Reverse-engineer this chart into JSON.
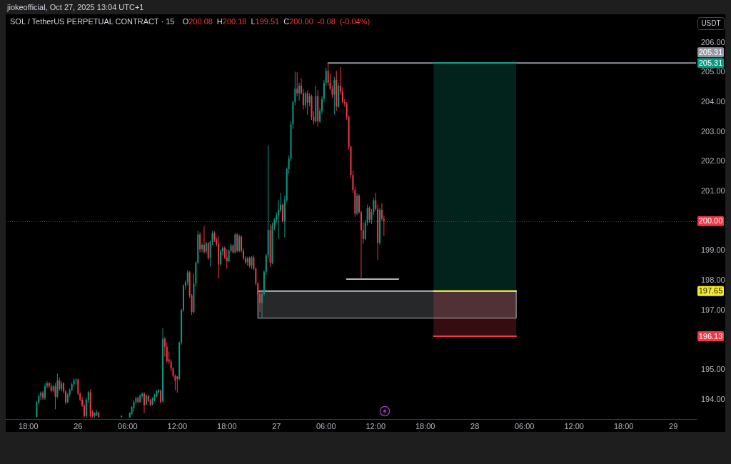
{
  "chart_data": {
    "type": "candlestick",
    "title": "SOL / TetherUS PERPETUAL CONTRACT · 15",
    "subtitle": "O200.08 H200.18 L199.51 C200.00 -0.08 (-0.04%)",
    "ylabel": "USDT",
    "annotations": [
      "jiokeofficial, Oct 27, 2025 13:04 UTC+1",
      {
        "text": "205.31",
        "y": 205.31
      },
      {
        "text": "197.65",
        "y": 197.65
      },
      {
        "text": "196.13",
        "y": 196.13
      }
    ],
    "xlim": [
      "2025-10-25T15:15",
      "2025-10-29T02:45"
    ],
    "ylim": [
      193.35,
      206.95
    ],
    "xticks": [
      {
        "value": "2025-10-25T18:00",
        "label": "18:00"
      },
      {
        "value": "2025-10-26T00:00",
        "label": "26"
      },
      {
        "value": "2025-10-26T06:00",
        "label": "06:00"
      },
      {
        "value": "2025-10-26T12:00",
        "label": "12:00"
      },
      {
        "value": "2025-10-26T18:00",
        "label": "18:00"
      },
      {
        "value": "2025-10-27T00:00",
        "label": "27"
      },
      {
        "value": "2025-10-27T06:00",
        "label": "06:00"
      },
      {
        "value": "2025-10-27T12:00",
        "label": "12:00"
      },
      {
        "value": "2025-10-27T18:00",
        "label": "18:00"
      },
      {
        "value": "2025-10-28T00:00",
        "label": "28"
      },
      {
        "value": "2025-10-28T06:00",
        "label": "06:00"
      },
      {
        "value": "2025-10-28T12:00",
        "label": "12:00"
      },
      {
        "value": "2025-10-28T18:00",
        "label": "18:00"
      },
      {
        "value": "2025-10-29T00:00",
        "label": "29"
      }
    ],
    "yticks": [
      {
        "value": 194,
        "label": "194.00"
      },
      {
        "value": 195,
        "label": "195.00"
      },
      {
        "value": 197,
        "label": "197.00"
      },
      {
        "value": 198,
        "label": "198.00"
      },
      {
        "value": 199,
        "label": "199.00"
      },
      {
        "value": 200,
        "label": null
      },
      {
        "value": 201,
        "label": "201.00"
      },
      {
        "value": 202,
        "label": "202.00"
      },
      {
        "value": 203,
        "label": "203.00"
      },
      {
        "value": 204,
        "label": "204.00"
      },
      {
        "value": 205,
        "label": "205.00"
      },
      {
        "value": 206,
        "label": "206.00"
      }
    ],
    "x": [
      "2025-10-25T19:00",
      "2025-10-25T19:15",
      "2025-10-25T19:30",
      "2025-10-25T19:45",
      "2025-10-25T20:00",
      "2025-10-25T20:15",
      "2025-10-25T20:30",
      "2025-10-25T20:45",
      "2025-10-25T21:00",
      "2025-10-25T21:15",
      "2025-10-25T21:30",
      "2025-10-25T21:45",
      "2025-10-25T22:00",
      "2025-10-25T22:15",
      "2025-10-25T22:30",
      "2025-10-25T22:45",
      "2025-10-25T23:00",
      "2025-10-25T23:15",
      "2025-10-25T23:30",
      "2025-10-25T23:45",
      "2025-10-26T00:00",
      "2025-10-26T00:15",
      "2025-10-26T00:30",
      "2025-10-26T00:45",
      "2025-10-26T01:00",
      "2025-10-26T01:15",
      "2025-10-26T01:30",
      "2025-10-26T01:45",
      "2025-10-26T02:00",
      "2025-10-26T02:15",
      "2025-10-26T02:30",
      "2025-10-26T05:15",
      "2025-10-26T06:15",
      "2025-10-26T06:30",
      "2025-10-26T06:45",
      "2025-10-26T07:00",
      "2025-10-26T07:15",
      "2025-10-26T07:30",
      "2025-10-26T07:45",
      "2025-10-26T08:00",
      "2025-10-26T08:15",
      "2025-10-26T08:30",
      "2025-10-26T08:45",
      "2025-10-26T09:00",
      "2025-10-26T09:15",
      "2025-10-26T09:30",
      "2025-10-26T09:45",
      "2025-10-26T10:00",
      "2025-10-26T10:15",
      "2025-10-26T10:30",
      "2025-10-26T10:45",
      "2025-10-26T11:00",
      "2025-10-26T11:15",
      "2025-10-26T11:30",
      "2025-10-26T11:45",
      "2025-10-26T12:00",
      "2025-10-26T12:15",
      "2025-10-26T12:30",
      "2025-10-26T12:45",
      "2025-10-26T13:00",
      "2025-10-26T13:15",
      "2025-10-26T13:30",
      "2025-10-26T13:45",
      "2025-10-26T14:00",
      "2025-10-26T14:15",
      "2025-10-26T14:30",
      "2025-10-26T14:45",
      "2025-10-26T15:00",
      "2025-10-26T15:15",
      "2025-10-26T15:30",
      "2025-10-26T15:45",
      "2025-10-26T16:00",
      "2025-10-26T16:15",
      "2025-10-26T16:30",
      "2025-10-26T16:45",
      "2025-10-26T17:00",
      "2025-10-26T17:15",
      "2025-10-26T17:30",
      "2025-10-26T17:45",
      "2025-10-26T18:00",
      "2025-10-26T18:15",
      "2025-10-26T18:30",
      "2025-10-26T18:45",
      "2025-10-26T19:00",
      "2025-10-26T19:15",
      "2025-10-26T19:30",
      "2025-10-26T19:45",
      "2025-10-26T20:00",
      "2025-10-26T20:15",
      "2025-10-26T20:30",
      "2025-10-26T20:45",
      "2025-10-26T21:00",
      "2025-10-26T21:15",
      "2025-10-26T21:30",
      "2025-10-26T21:45",
      "2025-10-26T22:00",
      "2025-10-26T22:15",
      "2025-10-26T22:30",
      "2025-10-26T22:45",
      "2025-10-26T23:00",
      "2025-10-26T23:15",
      "2025-10-26T23:30",
      "2025-10-26T23:45",
      "2025-10-27T00:00",
      "2025-10-27T00:15",
      "2025-10-27T00:30",
      "2025-10-27T00:45",
      "2025-10-27T01:00",
      "2025-10-27T01:15",
      "2025-10-27T01:30",
      "2025-10-27T01:45",
      "2025-10-27T02:00",
      "2025-10-27T02:15",
      "2025-10-27T02:30",
      "2025-10-27T02:45",
      "2025-10-27T03:00",
      "2025-10-27T03:15",
      "2025-10-27T03:30",
      "2025-10-27T03:45",
      "2025-10-27T04:00",
      "2025-10-27T04:15",
      "2025-10-27T04:30",
      "2025-10-27T04:45",
      "2025-10-27T05:00",
      "2025-10-27T05:15",
      "2025-10-27T05:30",
      "2025-10-27T05:45",
      "2025-10-27T06:00",
      "2025-10-27T06:15",
      "2025-10-27T06:30",
      "2025-10-27T06:45",
      "2025-10-27T07:00",
      "2025-10-27T07:15",
      "2025-10-27T07:30",
      "2025-10-27T07:45",
      "2025-10-27T08:00",
      "2025-10-27T08:15",
      "2025-10-27T08:30",
      "2025-10-27T08:45",
      "2025-10-27T09:00",
      "2025-10-27T09:15",
      "2025-10-27T09:30",
      "2025-10-27T09:45",
      "2025-10-27T10:00",
      "2025-10-27T10:15",
      "2025-10-27T10:30",
      "2025-10-27T10:45",
      "2025-10-27T11:00",
      "2025-10-27T11:15",
      "2025-10-27T11:30",
      "2025-10-27T11:45",
      "2025-10-27T12:00",
      "2025-10-27T12:15",
      "2025-10-27T12:30",
      "2025-10-27T12:45",
      "2025-10-27T13:00"
    ],
    "ohlc": [
      [
        193.42,
        193.95,
        193.4,
        193.9
      ],
      [
        193.9,
        194.2,
        193.85,
        194.12
      ],
      [
        194.12,
        194.28,
        194.0,
        194.24
      ],
      [
        194.24,
        194.3,
        194.0,
        194.05
      ],
      [
        194.05,
        194.55,
        194.0,
        194.45
      ],
      [
        194.45,
        194.62,
        194.38,
        194.55
      ],
      [
        194.55,
        194.6,
        194.4,
        194.45
      ],
      [
        194.45,
        194.55,
        194.25,
        194.3
      ],
      [
        194.3,
        194.5,
        194.25,
        194.45
      ],
      [
        194.45,
        194.55,
        193.68,
        194.1
      ],
      [
        194.1,
        194.88,
        194.05,
        194.65
      ],
      [
        194.65,
        194.75,
        194.3,
        194.35
      ],
      [
        194.35,
        194.62,
        194.28,
        194.55
      ],
      [
        194.55,
        194.6,
        194.2,
        194.28
      ],
      [
        194.28,
        194.32,
        193.85,
        193.92
      ],
      [
        193.92,
        194.22,
        193.88,
        194.18
      ],
      [
        194.18,
        194.38,
        194.1,
        194.32
      ],
      [
        194.32,
        194.58,
        194.28,
        194.52
      ],
      [
        194.52,
        194.72,
        194.45,
        194.65
      ],
      [
        194.65,
        194.72,
        194.5,
        194.68
      ],
      [
        194.68,
        194.7,
        194.15,
        194.2
      ],
      [
        194.2,
        194.25,
        193.95,
        194.0
      ],
      [
        194.0,
        194.1,
        193.75,
        193.8
      ],
      [
        193.8,
        193.85,
        193.4,
        193.45
      ],
      [
        193.45,
        194.08,
        193.4,
        194.0
      ],
      [
        194.0,
        194.3,
        193.9,
        194.25
      ],
      [
        194.25,
        194.35,
        193.4,
        193.45
      ],
      [
        193.6,
        193.65,
        193.4,
        193.45
      ],
      [
        193.45,
        193.58,
        193.4,
        193.55
      ],
      [
        193.48,
        193.65,
        193.45,
        193.58
      ],
      [
        193.56,
        193.6,
        193.4,
        193.42
      ],
      [
        193.42,
        193.48,
        193.4,
        193.45
      ],
      [
        193.4,
        193.58,
        193.4,
        193.55
      ],
      [
        193.52,
        193.78,
        193.48,
        193.75
      ],
      [
        193.72,
        193.98,
        193.6,
        193.92
      ],
      [
        193.92,
        194.1,
        193.85,
        194.05
      ],
      [
        194.05,
        194.1,
        193.88,
        193.92
      ],
      [
        193.92,
        194.18,
        193.9,
        194.15
      ],
      [
        194.12,
        194.25,
        194.05,
        194.2
      ],
      [
        194.2,
        194.25,
        193.55,
        193.82
      ],
      [
        193.85,
        194.18,
        193.8,
        194.15
      ],
      [
        194.12,
        194.18,
        193.92,
        193.95
      ],
      [
        193.98,
        194.02,
        193.78,
        193.82
      ],
      [
        193.85,
        194.08,
        193.8,
        194.05
      ],
      [
        194.0,
        194.2,
        193.95,
        194.16
      ],
      [
        194.12,
        194.32,
        194.08,
        194.3
      ],
      [
        194.25,
        194.36,
        194.2,
        194.32
      ],
      [
        194.3,
        194.35,
        193.88,
        193.92
      ],
      [
        193.95,
        196.4,
        193.9,
        196.05
      ],
      [
        196.05,
        196.1,
        195.45,
        195.78
      ],
      [
        195.78,
        195.92,
        195.25,
        195.3
      ],
      [
        195.35,
        195.62,
        195.2,
        195.28
      ],
      [
        195.28,
        195.35,
        194.95,
        195.05
      ],
      [
        195.05,
        195.1,
        194.75,
        194.8
      ],
      [
        194.8,
        194.85,
        194.32,
        194.64
      ],
      [
        194.78,
        194.8,
        194.24,
        194.7
      ],
      [
        194.7,
        195.95,
        194.65,
        195.92
      ],
      [
        195.92,
        197.05,
        195.85,
        197.02
      ],
      [
        197.02,
        197.88,
        196.95,
        197.83
      ],
      [
        197.83,
        198.0,
        197.7,
        197.95
      ],
      [
        197.95,
        198.35,
        197.85,
        198.28
      ],
      [
        198.28,
        198.32,
        197.42,
        197.5
      ],
      [
        197.5,
        197.55,
        196.85,
        196.95
      ],
      [
        196.95,
        198.23,
        196.9,
        197.9
      ],
      [
        197.9,
        198.65,
        197.8,
        198.6
      ],
      [
        198.6,
        199.67,
        198.55,
        199.55
      ],
      [
        199.55,
        199.62,
        198.95,
        199.05
      ],
      [
        199.05,
        199.25,
        198.95,
        199.2
      ],
      [
        199.2,
        199.83,
        198.9,
        198.97
      ],
      [
        198.97,
        199.3,
        198.9,
        199.25
      ],
      [
        199.25,
        199.3,
        198.7,
        198.75
      ],
      [
        198.75,
        199.35,
        198.47,
        199.3
      ],
      [
        199.3,
        199.67,
        199.2,
        199.6
      ],
      [
        199.6,
        199.65,
        199.3,
        199.38
      ],
      [
        199.38,
        199.45,
        199.15,
        199.22
      ],
      [
        199.22,
        199.48,
        198.07,
        198.55
      ],
      [
        198.55,
        199.05,
        198.5,
        198.98
      ],
      [
        198.98,
        199.15,
        198.85,
        199.1
      ],
      [
        199.1,
        199.15,
        198.72,
        198.78
      ],
      [
        198.78,
        199.05,
        198.4,
        198.65
      ],
      [
        198.65,
        199.05,
        198.6,
        199.0
      ],
      [
        199.0,
        199.25,
        198.95,
        199.18
      ],
      [
        199.18,
        199.22,
        198.9,
        198.95
      ],
      [
        198.95,
        199.6,
        198.9,
        199.55
      ],
      [
        199.55,
        199.6,
        198.95,
        199.0
      ],
      [
        199.0,
        199.55,
        198.95,
        199.48
      ],
      [
        199.48,
        199.52,
        198.95,
        199.0
      ],
      [
        199.0,
        199.08,
        198.7,
        198.75
      ],
      [
        198.75,
        198.82,
        198.55,
        198.62
      ],
      [
        198.62,
        198.8,
        198.5,
        198.75
      ],
      [
        198.75,
        198.8,
        198.45,
        198.5
      ],
      [
        198.5,
        198.82,
        198.4,
        198.78
      ],
      [
        198.78,
        198.85,
        198.35,
        198.4
      ],
      [
        198.4,
        198.45,
        197.85,
        197.9
      ],
      [
        197.9,
        197.95,
        197.4,
        197.55
      ],
      [
        197.55,
        197.65,
        196.95,
        197.25
      ],
      [
        197.25,
        197.7,
        196.74,
        197.55
      ],
      [
        197.55,
        198.35,
        197.5,
        198.3
      ],
      [
        198.3,
        198.9,
        198.2,
        198.85
      ],
      [
        198.85,
        202.54,
        198.75,
        199.7
      ],
      [
        199.7,
        199.9,
        198.45,
        198.6
      ],
      [
        198.6,
        199.95,
        198.55,
        199.85
      ],
      [
        199.85,
        200.1,
        199.7,
        200.05
      ],
      [
        200.05,
        200.3,
        199.95,
        200.2
      ],
      [
        200.2,
        200.7,
        199.4,
        200.38
      ],
      [
        200.38,
        200.95,
        200.3,
        200.55
      ],
      [
        200.55,
        200.6,
        199.95,
        200.0
      ],
      [
        200.0,
        200.85,
        199.45,
        200.7
      ],
      [
        200.7,
        201.8,
        200.65,
        201.75
      ],
      [
        201.75,
        202.2,
        201.6,
        202.1
      ],
      [
        202.1,
        203.35,
        202.0,
        203.25
      ],
      [
        203.25,
        204.05,
        203.1,
        204.0
      ],
      [
        204.0,
        205.02,
        203.9,
        204.45
      ],
      [
        204.45,
        205.0,
        204.2,
        204.3
      ],
      [
        204.3,
        204.65,
        204.05,
        204.55
      ],
      [
        204.55,
        204.8,
        204.25,
        204.3
      ],
      [
        204.3,
        204.45,
        203.75,
        203.9
      ],
      [
        203.9,
        204.35,
        203.8,
        204.3
      ],
      [
        204.3,
        204.4,
        203.58,
        203.98
      ],
      [
        203.98,
        204.3,
        203.85,
        204.2
      ],
      [
        204.2,
        204.25,
        203.4,
        203.5
      ],
      [
        203.5,
        203.7,
        203.25,
        203.35
      ],
      [
        203.35,
        204.55,
        203.3,
        204.2
      ],
      [
        204.2,
        204.4,
        203.18,
        203.35
      ],
      [
        203.35,
        203.8,
        203.3,
        203.7
      ],
      [
        203.7,
        204.2,
        203.6,
        204.1
      ],
      [
        204.1,
        204.75,
        204.0,
        204.65
      ],
      [
        204.65,
        205.15,
        204.55,
        205.05
      ],
      [
        205.05,
        205.31,
        204.55,
        204.65
      ],
      [
        204.65,
        204.95,
        204.4,
        204.45
      ],
      [
        204.45,
        204.55,
        204.15,
        204.25
      ],
      [
        204.25,
        204.85,
        203.58,
        204.75
      ],
      [
        204.75,
        205.05,
        203.7,
        203.85
      ],
      [
        203.85,
        204.65,
        203.8,
        204.55
      ],
      [
        204.55,
        205.18,
        204.25,
        204.35
      ],
      [
        204.35,
        204.5,
        203.95,
        204.0
      ],
      [
        204.0,
        204.1,
        203.85,
        203.95
      ],
      [
        203.95,
        204.0,
        203.4,
        203.5
      ],
      [
        203.5,
        203.55,
        202.4,
        202.5
      ],
      [
        202.5,
        202.55,
        201.45,
        201.55
      ],
      [
        201.55,
        201.7,
        200.95,
        201.05
      ],
      [
        201.05,
        201.15,
        200.15,
        200.25
      ],
      [
        200.25,
        200.95,
        200.2,
        200.85
      ],
      [
        200.85,
        200.9,
        200.25,
        200.3
      ],
      [
        200.3,
        200.35,
        198.05,
        199.7
      ],
      [
        199.7,
        199.95,
        199.25,
        199.4
      ],
      [
        199.4,
        200.05,
        199.35,
        199.95
      ],
      [
        199.95,
        200.55,
        199.85,
        200.45
      ],
      [
        200.45,
        200.5,
        199.95,
        200.05
      ],
      [
        200.05,
        200.4,
        199.9,
        200.3
      ],
      [
        200.3,
        200.78,
        200.2,
        200.7
      ],
      [
        200.7,
        200.95,
        200.35,
        200.4
      ],
      [
        200.4,
        200.55,
        198.7,
        199.27
      ],
      [
        199.27,
        200.45,
        199.2,
        200.38
      ],
      [
        200.38,
        200.6,
        200.0,
        200.08
      ],
      [
        200.08,
        200.18,
        199.51,
        200.0
      ]
    ],
    "series": [
      {
        "type": "line",
        "x": [
          "2025-10-27T19:00",
          "2025-10-28T05:00"
        ],
        "values": [
          205.31,
          205.31
        ],
        "lower": [
          197.65,
          197.65
        ],
        "upper": [
          205.31,
          205.31
        ],
        "color": "#089981"
      },
      {
        "type": "line",
        "x": [
          "2025-10-27T19:00",
          "2025-10-28T05:00"
        ],
        "values": [
          196.13,
          196.13
        ],
        "lower": [
          196.13,
          196.13
        ],
        "upper": [
          197.65,
          197.65
        ],
        "color": "#f23645"
      },
      {
        "type": "line",
        "x": [
          "2025-10-27T19:00",
          "2025-10-28T05:00"
        ],
        "values": [
          197.65,
          197.65
        ],
        "color": "#f7e92a"
      },
      {
        "type": "line",
        "x": [
          "2025-10-26T21:45",
          "2025-10-28T05:00"
        ],
        "values": [
          197.65,
          197.65
        ],
        "lower": [
          196.74,
          196.74
        ],
        "upper": [
          197.65,
          197.65
        ],
        "color": "#b2b5be",
        "line_style": "solid"
      },
      {
        "type": "line",
        "x": [
          "2025-10-27T08:30",
          "2025-10-27T14:45"
        ],
        "values": [
          198.05,
          198.05
        ],
        "color": "#b2b5be"
      },
      {
        "type": "line",
        "x": [
          "2025-10-27T06:15",
          "2025-10-29T02:45"
        ],
        "values": [
          205.31,
          205.31
        ],
        "color": "#9598a1",
        "value_labels": [
          null,
          "205.31"
        ]
      }
    ],
    "ref_lines": [
      {
        "axis": "y",
        "value": 200,
        "label": "200.00",
        "color": "#f23645",
        "line_style": "dotted"
      }
    ]
  }
}
